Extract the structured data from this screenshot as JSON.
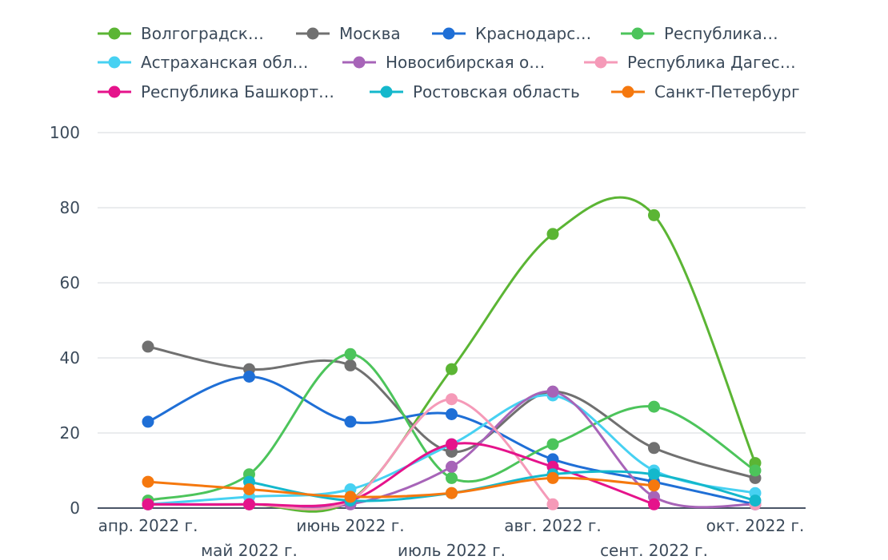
{
  "chart_data": {
    "type": "line",
    "categories": [
      "апр. 2022 г.",
      "май 2022 г.",
      "июнь 2022 г.",
      "июль 2022 г.",
      "авг. 2022 г.",
      "сент. 2022 г.",
      "окт. 2022 г."
    ],
    "ylim": [
      0,
      100
    ],
    "yticks": [
      0,
      20,
      40,
      60,
      80,
      100
    ],
    "grid": true,
    "legend_position": "top",
    "smooth": true,
    "series": [
      {
        "name": "Волгоградск…",
        "color": "#5bb534",
        "values": [
          1,
          1,
          2,
          37,
          73,
          78,
          12
        ]
      },
      {
        "name": "Москва",
        "color": "#707070",
        "values": [
          43,
          37,
          38,
          15,
          31,
          16,
          8
        ]
      },
      {
        "name": "Краснодарс…",
        "color": "#1f6fd6",
        "values": [
          23,
          35,
          23,
          25,
          13,
          7,
          1
        ]
      },
      {
        "name": "Республика…",
        "color": "#4cc45b",
        "values": [
          2,
          9,
          41,
          8,
          17,
          27,
          10
        ]
      },
      {
        "name": "Астраханская обл…",
        "color": "#47d1f2",
        "values": [
          1,
          3,
          5,
          17,
          30,
          10,
          4
        ]
      },
      {
        "name": "Новосибирская о…",
        "color": "#a764b8",
        "values": [
          1,
          1,
          1,
          11,
          31,
          3,
          1
        ]
      },
      {
        "name": "Республика Дагес…",
        "color": "#f59ab8",
        "values": [
          1,
          1,
          2,
          29,
          1,
          null,
          1
        ]
      },
      {
        "name": "Республика Башкорт…",
        "color": "#e5138b",
        "values": [
          1,
          1,
          2,
          17,
          11,
          1,
          null
        ]
      },
      {
        "name": "Ростовская область",
        "color": "#14b8cc",
        "values": [
          null,
          7,
          2,
          4,
          9,
          9,
          2
        ]
      },
      {
        "name": "Санкт-Петербург",
        "color": "#f5780e",
        "values": [
          7,
          5,
          3,
          4,
          8,
          6,
          null
        ]
      }
    ]
  }
}
